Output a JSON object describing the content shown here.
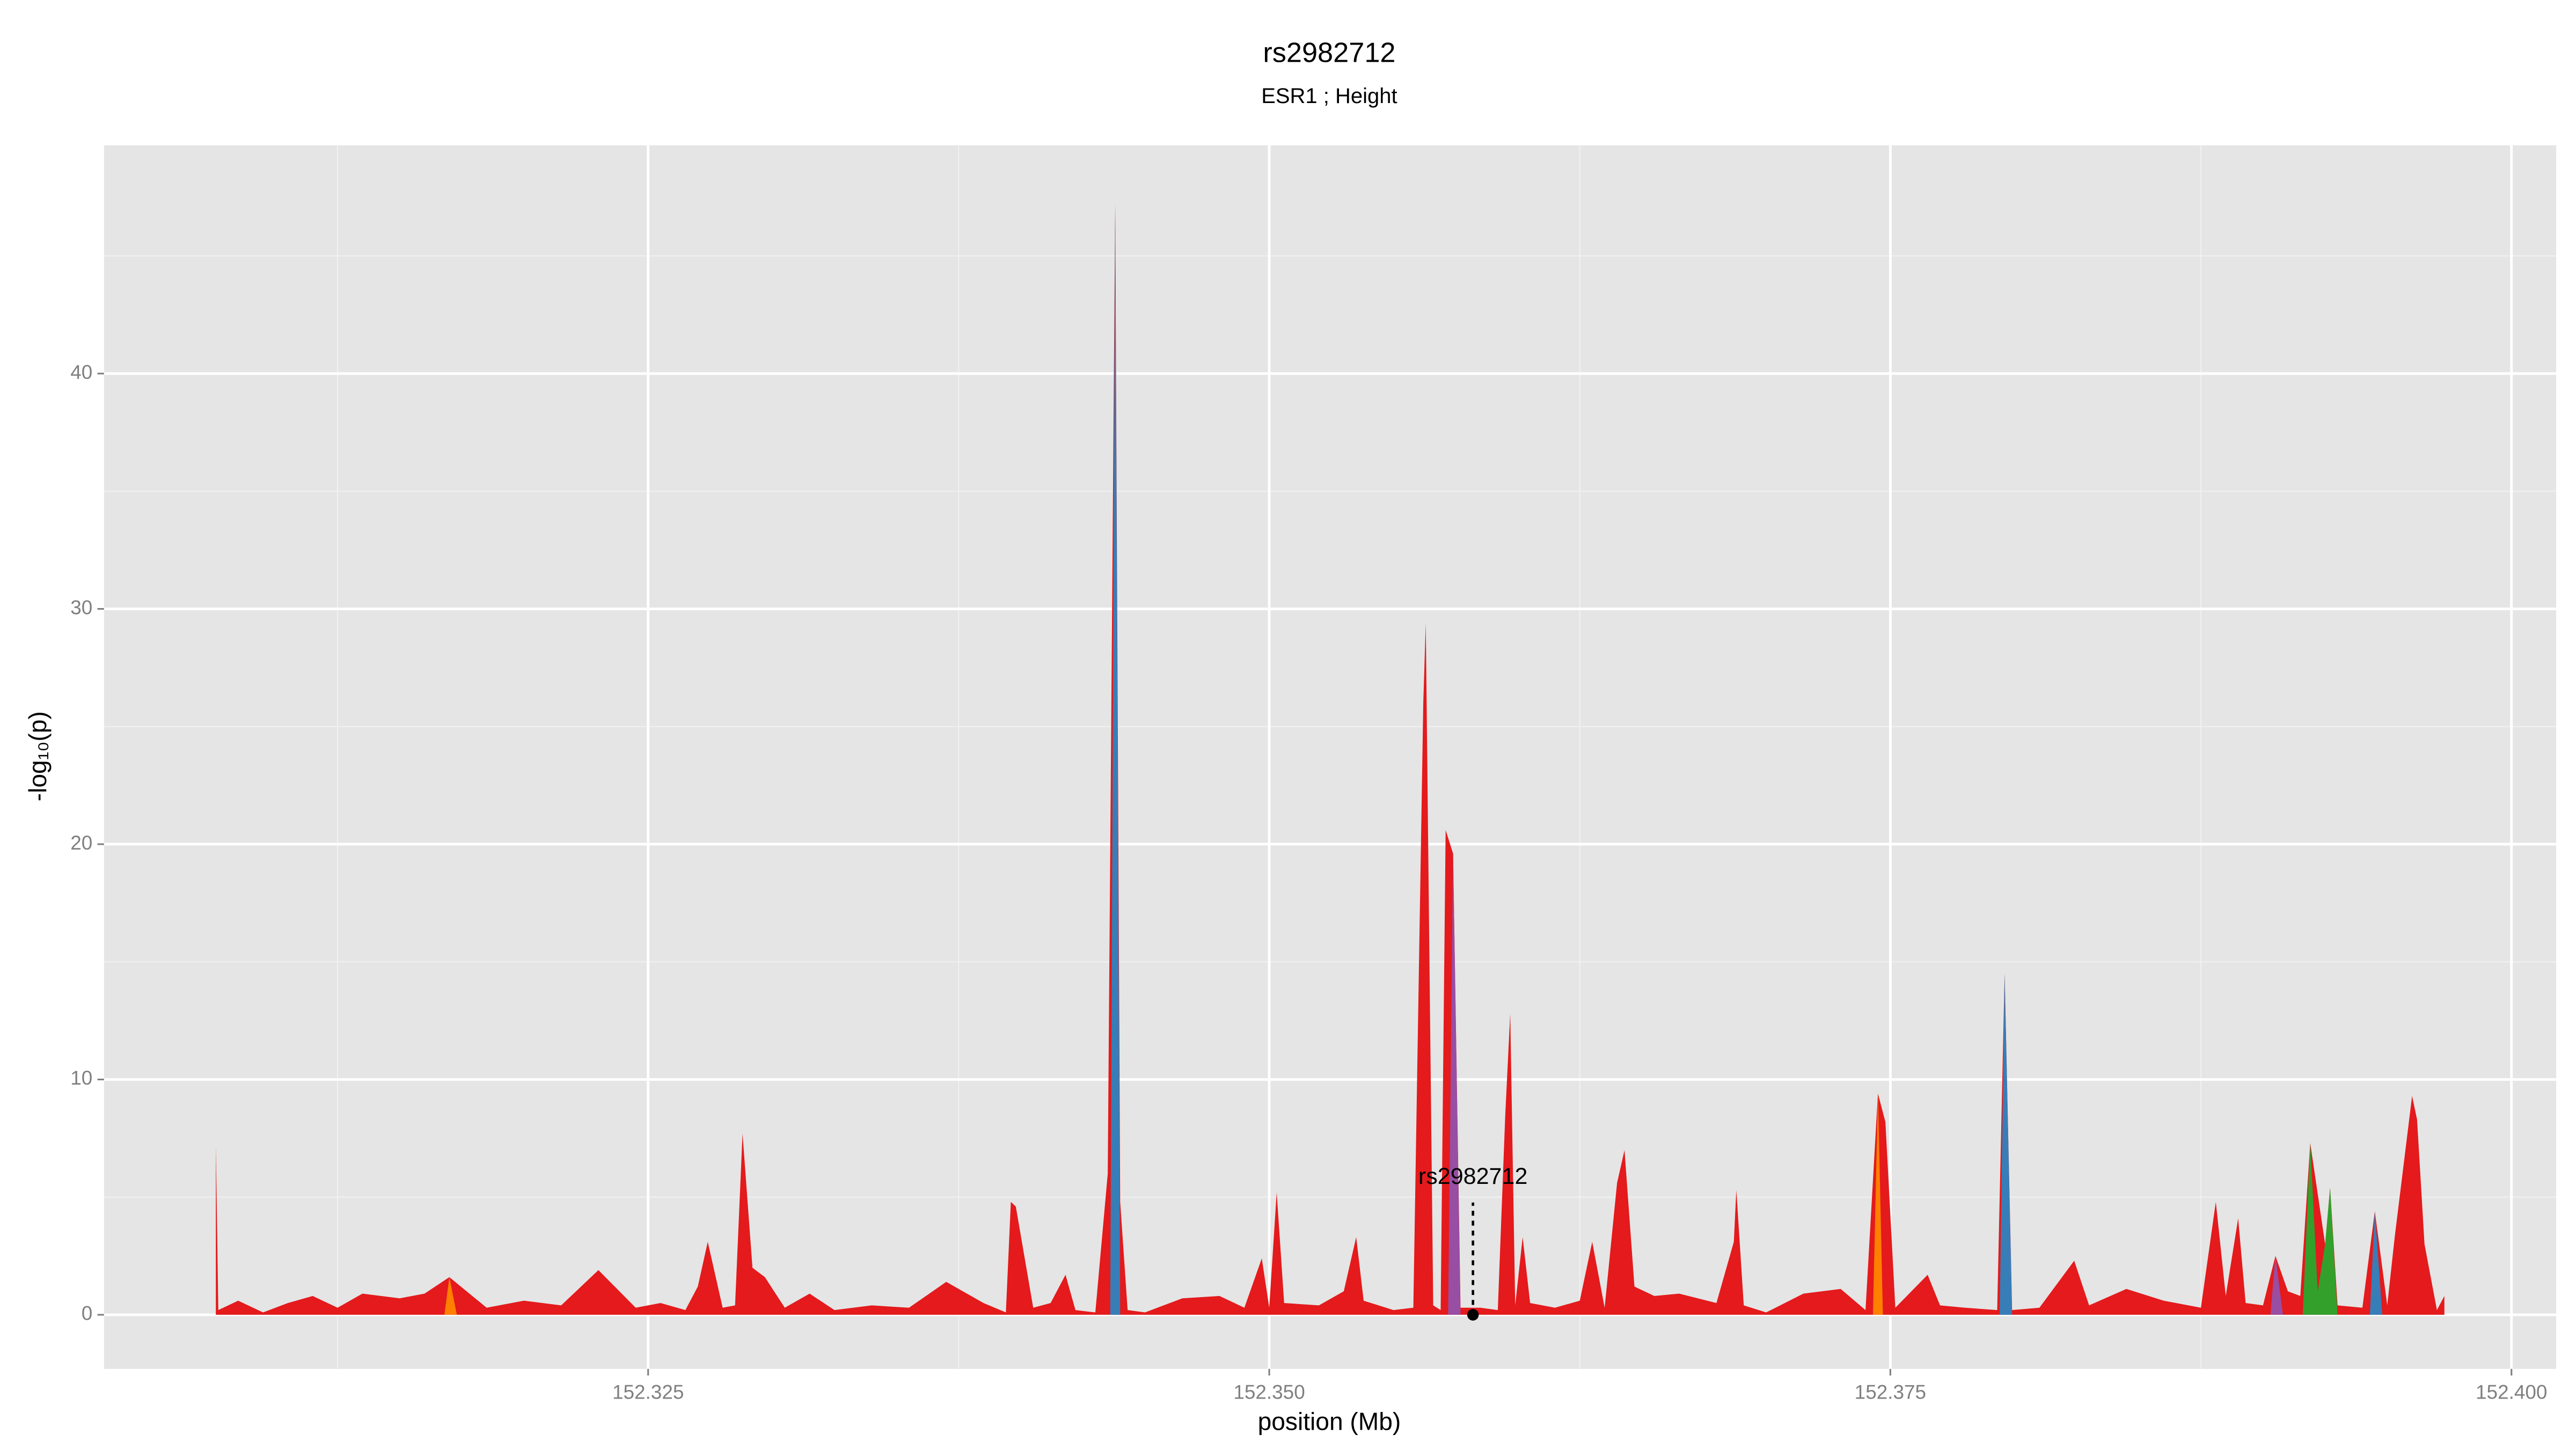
{
  "chart_data": {
    "type": "area",
    "title": "rs2982712",
    "subtitle": "ESR1 ; Height",
    "x_label": "position (Mb)",
    "y_label": "-log₁₀(p)",
    "xlim": [
      152.3031,
      152.4018
    ],
    "ylim": [
      -2.3,
      49.7
    ],
    "xticks": [
      152.325,
      {
        "value": 152.35,
        "label": "152.350"
      },
      152.375,
      {
        "value": 152.4,
        "label": "152.400"
      }
    ],
    "yticks": [
      0,
      10,
      20,
      30,
      40
    ],
    "grid": true,
    "series": [
      {
        "color": "#e41a1c",
        "x": [
          152.3076,
          152.3077,
          152.3085,
          152.3095,
          152.3105,
          152.3115,
          152.3125,
          152.3135,
          152.315,
          152.316,
          152.317,
          152.3185,
          152.32,
          152.3215,
          152.323,
          152.3245,
          152.3255,
          152.3265,
          152.327,
          152.3274,
          152.328,
          152.3285,
          152.3288,
          152.3292,
          152.3297,
          152.3305,
          152.3315,
          152.3325,
          152.334,
          152.3355,
          152.337,
          152.3385,
          152.3394,
          152.3396,
          152.3398,
          152.3405,
          152.3412,
          152.3418,
          152.3422,
          152.343,
          152.3435,
          152.3438,
          152.344,
          152.3443,
          152.345,
          152.3465,
          152.348,
          152.349,
          152.3497,
          152.35,
          152.3503,
          152.3506,
          152.352,
          152.353,
          152.3535,
          152.3538,
          152.355,
          152.3558,
          152.3562,
          152.3563,
          152.3566,
          152.3569,
          152.3571,
          152.3574,
          152.3577,
          152.3585,
          152.3592,
          152.3595,
          152.3597,
          152.3599,
          152.3602,
          152.3605,
          152.3615,
          152.3625,
          152.363,
          152.3635,
          152.364,
          152.3643,
          152.3647,
          152.3655,
          152.3665,
          152.368,
          152.3687,
          152.3688,
          152.3691,
          152.37,
          152.3715,
          152.373,
          152.374,
          152.3745,
          152.3748,
          152.3752,
          152.3765,
          152.377,
          152.378,
          152.3793,
          152.3796,
          152.3799,
          152.381,
          152.3824,
          152.383,
          152.3845,
          152.386,
          152.3875,
          152.3881,
          152.3885,
          152.389,
          152.3893,
          152.39,
          152.3905,
          152.391,
          152.3915,
          152.3919,
          152.3925,
          152.3927,
          152.393,
          152.394,
          152.3945,
          152.395,
          152.3953,
          152.396,
          152.3962,
          152.3965,
          152.397,
          152.3973
        ],
        "values": [
          7.2,
          0.2,
          0.6,
          0.1,
          0.5,
          0.8,
          0.3,
          0.9,
          0.7,
          0.9,
          1.6,
          0.3,
          0.6,
          0.4,
          1.9,
          0.3,
          0.5,
          0.2,
          1.2,
          3.1,
          0.3,
          0.4,
          7.7,
          2.0,
          1.6,
          0.3,
          0.9,
          0.2,
          0.4,
          0.3,
          1.4,
          0.5,
          0.1,
          4.8,
          4.6,
          0.3,
          0.5,
          1.7,
          0.2,
          0.1,
          6.0,
          47.2,
          4.8,
          0.2,
          0.1,
          0.7,
          0.8,
          0.3,
          2.4,
          0.3,
          5.2,
          0.5,
          0.4,
          1.0,
          3.3,
          0.6,
          0.2,
          0.3,
          26.0,
          29.4,
          0.4,
          0.2,
          20.6,
          19.6,
          0.3,
          0.3,
          0.2,
          8.5,
          12.8,
          0.4,
          3.3,
          0.5,
          0.3,
          0.6,
          3.1,
          0.3,
          5.6,
          7.0,
          1.2,
          0.8,
          0.9,
          0.5,
          3.1,
          5.3,
          0.4,
          0.1,
          0.9,
          1.1,
          0.2,
          9.4,
          8.2,
          0.3,
          1.7,
          0.4,
          0.3,
          0.2,
          14.5,
          0.2,
          0.3,
          2.3,
          0.4,
          1.1,
          0.6,
          0.3,
          4.8,
          0.8,
          4.1,
          0.5,
          0.4,
          2.5,
          1.0,
          0.8,
          7.3,
          3.0,
          5.4,
          0.4,
          0.3,
          4.4,
          0.4,
          3.3,
          9.3,
          8.3,
          3.0,
          0.2,
          0.8
        ]
      },
      {
        "color": "#377eb8",
        "x": [
          152.3436,
          152.3438,
          152.344
        ],
        "values": [
          0,
          47.2,
          0
        ]
      },
      {
        "color": "#377eb8",
        "x": [
          152.3794,
          152.3796,
          152.3799
        ],
        "values": [
          0,
          14.5,
          0
        ]
      },
      {
        "color": "#377eb8",
        "x": [
          152.3943,
          152.3945,
          152.3948
        ],
        "values": [
          0,
          4.4,
          0
        ]
      },
      {
        "color": "#984ea3",
        "x": [
          152.3572,
          152.3574,
          152.3577
        ],
        "values": [
          0,
          19.6,
          0
        ]
      },
      {
        "color": "#984ea3",
        "x": [
          152.3903,
          152.3905,
          152.3908
        ],
        "values": [
          0,
          2.5,
          0
        ]
      },
      {
        "color": "#ff7f00",
        "x": [
          152.3743,
          152.3745,
          152.3747
        ],
        "values": [
          0,
          9.4,
          0
        ]
      },
      {
        "color": "#ff7f00",
        "x": [
          152.3168,
          152.317,
          152.3173
        ],
        "values": [
          0,
          1.6,
          0
        ]
      },
      {
        "color": "#33a02c",
        "x": [
          152.3916,
          152.3919,
          152.3922,
          152.3925,
          152.3927,
          152.393
        ],
        "values": [
          0,
          7.3,
          1.0,
          3.0,
          5.4,
          0
        ]
      }
    ],
    "annotations": [
      {
        "text": "rs2982712",
        "x": 152.3582,
        "y": 0
      }
    ]
  }
}
